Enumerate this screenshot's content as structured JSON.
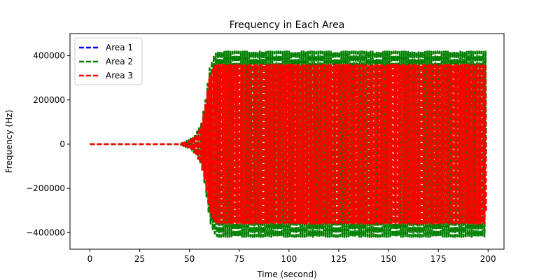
{
  "chart_data": {
    "type": "line",
    "title": "Frequency in Each Area",
    "xlabel": "Time (second)",
    "ylabel": "Frequency (Hz)",
    "xlim": [
      -10,
      208
    ],
    "ylim": [
      -475000,
      500000
    ],
    "x_ticks": [
      0,
      25,
      50,
      75,
      100,
      125,
      150,
      175,
      200
    ],
    "x_tick_labels": [
      "0",
      "25",
      "50",
      "75",
      "100",
      "125",
      "150",
      "175",
      "200"
    ],
    "y_ticks": [
      -400000,
      -200000,
      0,
      200000,
      400000
    ],
    "y_tick_labels": [
      "−400000",
      "−200000",
      "0",
      "200000",
      "400000"
    ],
    "grid": false,
    "legend_position": "top-left",
    "line_style": "dashed",
    "series": [
      {
        "name": "Area 1",
        "color": "#0000ff",
        "x": [
          0,
          45,
          46,
          52,
          54,
          56,
          58,
          60,
          62,
          70,
          80,
          90,
          100,
          110,
          120,
          130,
          140,
          150,
          160,
          170,
          180,
          190,
          199
        ],
        "amplitude": [
          0,
          0,
          0,
          0,
          0,
          0,
          0,
          0,
          0,
          0,
          0,
          0,
          0,
          0,
          0,
          0,
          0,
          0,
          0,
          0,
          0,
          0,
          0
        ]
      },
      {
        "name": "Area 2",
        "color": "#008000",
        "x": [
          0,
          45,
          46,
          50,
          52,
          54,
          56,
          58,
          60,
          62,
          64,
          70,
          80,
          90,
          100,
          110,
          120,
          130,
          140,
          150,
          160,
          170,
          180,
          190,
          199
        ],
        "amplitude": [
          0,
          0,
          5000,
          20000,
          35000,
          60000,
          100000,
          200000,
          340000,
          400000,
          420000,
          420000,
          420000,
          420000,
          420000,
          420000,
          420000,
          420000,
          420000,
          420000,
          420000,
          420000,
          420000,
          420000,
          420000
        ]
      },
      {
        "name": "Area 3",
        "color": "#ff0000",
        "x": [
          0,
          45,
          46,
          50,
          52,
          54,
          56,
          58,
          60,
          62,
          64,
          70,
          80,
          90,
          100,
          110,
          120,
          130,
          140,
          150,
          160,
          170,
          180,
          190,
          199
        ],
        "amplitude": [
          0,
          0,
          4000,
          15000,
          30000,
          55000,
          90000,
          180000,
          300000,
          350000,
          360000,
          360000,
          360000,
          360000,
          360000,
          360000,
          360000,
          360000,
          360000,
          360000,
          360000,
          360000,
          360000,
          360000,
          360000
        ]
      }
    ]
  }
}
